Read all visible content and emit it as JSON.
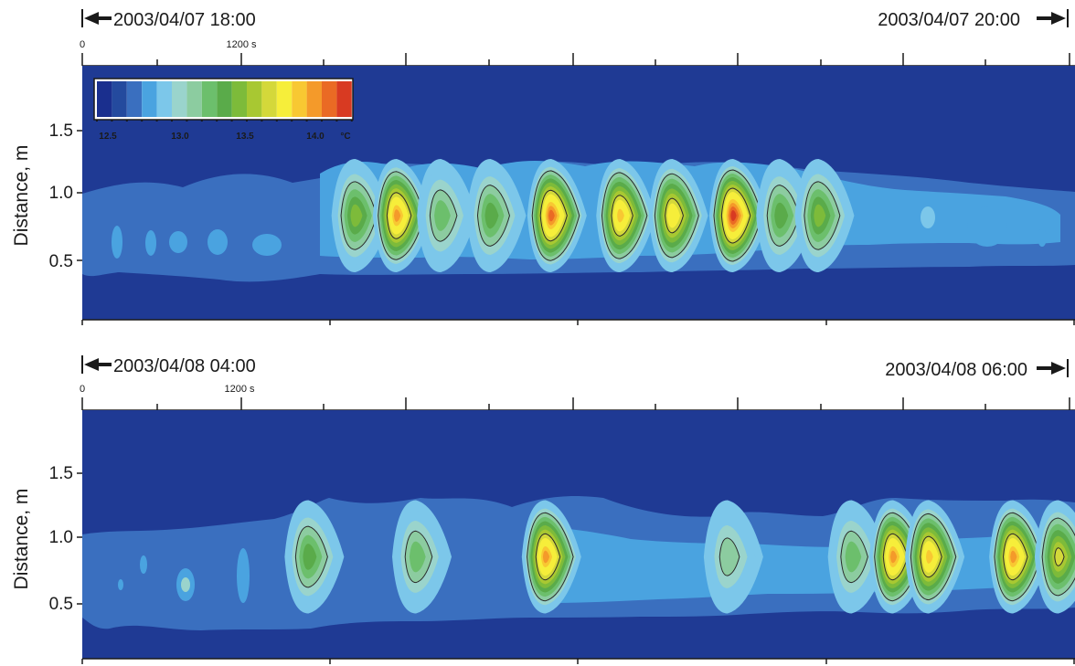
{
  "colors": {
    "palette": [
      "#1a2f8e",
      "#244a9e",
      "#3a6fbf",
      "#4aa3e0",
      "#7cc7ea",
      "#9ad4cc",
      "#8ccca0",
      "#6cbf6c",
      "#5aab4a",
      "#7dbb3a",
      "#a8c832",
      "#d4d83a",
      "#f6ee3a",
      "#f8c832",
      "#f49a2a",
      "#ea6a24",
      "#d83a22"
    ],
    "outer": "#1f3a94",
    "band": "#3a6fbf",
    "mid": "#4aa3e0",
    "contour_line": "#2a2a2a"
  },
  "colorbar": {
    "tick_labels": [
      "12.5",
      "13.0",
      "13.5",
      "14.0"
    ],
    "unit": "°C",
    "range": [
      12.4,
      14.2
    ]
  },
  "chart_data": [
    {
      "type": "heatmap",
      "panel": "top",
      "start_label": "2003/04/07 18:00",
      "end_label": "2003/04/07 20:00",
      "top_tick_labels": [
        "0",
        "1200 s"
      ],
      "ylabel": "Distance, m",
      "y_tick_labels": [
        "0.5",
        "1.0",
        "1.5"
      ],
      "xlim": [
        0,
        7200
      ],
      "ylim": [
        0.0,
        2.0
      ],
      "x_unit": "s",
      "description_values": {
        "background_temp_c": 12.4,
        "band_low_m": 0.35,
        "band_high_m": 1.05,
        "core_m": 0.82
      },
      "hotspots": [
        {
          "t": 1980,
          "t_c": 13.4
        },
        {
          "t": 2280,
          "t_c": 14.0
        },
        {
          "t": 2600,
          "t_c": 13.2
        },
        {
          "t": 2960,
          "t_c": 13.3
        },
        {
          "t": 3400,
          "t_c": 14.1
        },
        {
          "t": 3900,
          "t_c": 13.9
        },
        {
          "t": 4280,
          "t_c": 13.8
        },
        {
          "t": 4720,
          "t_c": 14.2
        },
        {
          "t": 5060,
          "t_c": 13.3
        },
        {
          "t": 5340,
          "t_c": 13.4
        }
      ]
    },
    {
      "type": "heatmap",
      "panel": "bottom",
      "start_label": "2003/04/08 04:00",
      "end_label": "2003/04/08 06:00",
      "top_tick_labels": [
        "0",
        "1200 s"
      ],
      "ylabel": "Distance, m",
      "y_tick_labels": [
        "0.5",
        "1.0",
        "1.5"
      ],
      "xlim": [
        0,
        7200
      ],
      "ylim": [
        0.0,
        2.0
      ],
      "x_unit": "s",
      "description_values": {
        "background_temp_c": 12.4,
        "band_low_m": 0.45,
        "band_high_m": 1.05,
        "core_m": 0.82
      },
      "hotspots": [
        {
          "t": 1640,
          "t_c": 13.3
        },
        {
          "t": 2420,
          "t_c": 13.2
        },
        {
          "t": 3360,
          "t_c": 14.0
        },
        {
          "t": 4680,
          "t_c": 13.1
        },
        {
          "t": 5580,
          "t_c": 13.2
        },
        {
          "t": 5880,
          "t_c": 14.0
        },
        {
          "t": 6140,
          "t_c": 13.9
        },
        {
          "t": 6750,
          "t_c": 14.0
        },
        {
          "t": 7080,
          "t_c": 13.6
        }
      ]
    }
  ]
}
